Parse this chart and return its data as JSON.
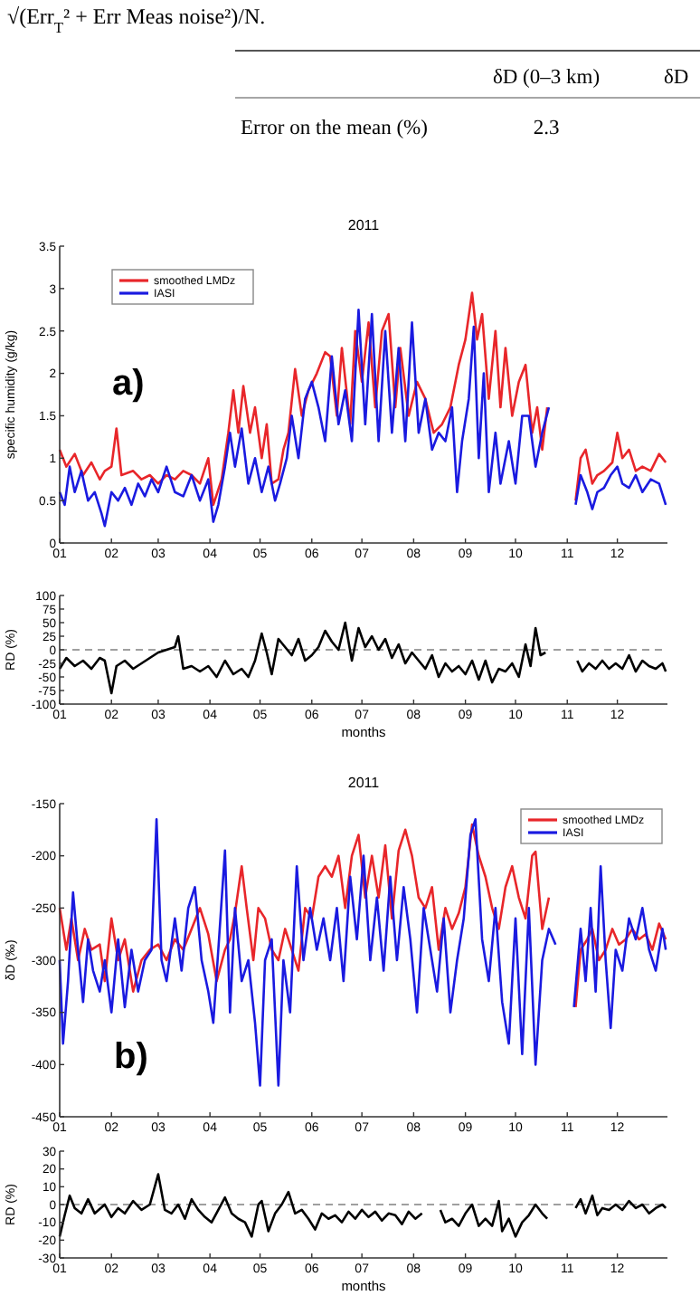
{
  "chart_data": [
    {
      "type": "other",
      "annotations": [
        "√(Err$_{T}$² + Err Meas noise²)/N.",
        "δD (0–3 km)",
        "δD",
        "Error on the mean (%)",
        "2.3"
      ]
    },
    {
      "type": "line",
      "title": "2011",
      "ylabel": "specific humidity (g/kg)",
      "xlim": [
        "2011-01-01",
        "2011-12-31"
      ],
      "xticks": [
        {
          "value": "2011-01-01",
          "label": "01"
        },
        {
          "value": "2011-02-01",
          "label": "02"
        },
        {
          "value": "2011-03-01",
          "label": "03"
        },
        {
          "value": "2011-04-01",
          "label": "04"
        },
        {
          "value": "2011-05-01",
          "label": "05"
        },
        {
          "value": "2011-06-01",
          "label": "06"
        },
        {
          "value": "2011-07-01",
          "label": "07"
        },
        {
          "value": "2011-08-01",
          "label": "08"
        },
        {
          "value": "2011-09-01",
          "label": "09"
        },
        {
          "value": "2011-10-01",
          "label": "10"
        },
        {
          "value": "2011-11-01",
          "label": "11"
        },
        {
          "value": "2011-12-01",
          "label": "12"
        }
      ],
      "ylim": [
        0,
        3.5
      ],
      "yticks": [
        0,
        0.5,
        1,
        1.5,
        2,
        2.5,
        3,
        3.5
      ],
      "legend": "top left",
      "annotations": [
        "a)"
      ],
      "series": [
        {
          "name": "smoothed LMDz",
          "color": "#e8262a",
          "x": [
            "2011-01-01",
            "2011-01-05",
            "2011-01-10",
            "2011-01-15",
            "2011-01-20",
            "2011-01-25",
            "2011-01-28",
            "2011-02-01",
            "2011-02-04",
            "2011-02-07",
            "2011-02-14",
            "2011-02-19",
            "2011-02-24",
            "2011-03-01",
            "2011-03-06",
            "2011-03-11",
            "2011-03-16",
            "2011-03-21",
            "2011-03-26",
            "2011-03-31",
            "2011-04-03",
            "2011-04-08",
            "2011-04-12",
            "2011-04-15",
            "2011-04-18",
            "2011-04-21",
            "2011-04-25",
            "2011-04-28",
            "2011-05-02",
            "2011-05-05",
            "2011-05-08",
            "2011-05-12",
            "2011-05-15",
            "2011-05-18",
            "2011-05-22",
            "2011-05-26",
            "2011-05-30",
            "2011-06-04",
            "2011-06-09",
            "2011-06-12",
            "2011-06-16",
            "2011-06-19",
            "2011-06-24",
            "2011-06-27",
            "2011-07-01",
            "2011-07-05",
            "2011-07-09",
            "2011-07-13",
            "2011-07-17",
            "2011-07-21",
            "2011-07-24",
            "2011-07-29",
            "2011-08-03",
            "2011-08-08",
            "2011-08-13",
            "2011-08-18",
            "2011-08-23",
            "2011-08-28",
            "2011-09-01",
            "2011-09-05",
            "2011-09-08",
            "2011-09-11",
            "2011-09-15",
            "2011-09-19",
            "2011-09-22",
            "2011-09-25",
            "2011-09-29",
            "2011-10-03",
            "2011-10-07",
            "2011-10-11",
            "2011-10-14",
            "2011-10-17",
            "2011-10-20",
            "2011-10-29",
            "2011-11-06",
            "2011-11-09",
            "2011-11-12",
            "2011-11-16",
            "2011-11-19",
            "2011-11-23",
            "2011-11-28",
            "2011-12-01",
            "2011-12-04",
            "2011-12-08",
            "2011-12-12",
            "2011-12-16",
            "2011-12-21",
            "2011-12-26",
            "2011-12-30"
          ],
          "values": [
            1.1,
            0.9,
            1.05,
            0.8,
            0.95,
            0.75,
            0.85,
            0.9,
            1.35,
            0.8,
            0.85,
            0.75,
            0.8,
            0.7,
            0.8,
            0.75,
            0.85,
            0.8,
            0.7,
            1.0,
            0.45,
            0.75,
            1.3,
            1.8,
            1.3,
            1.85,
            1.3,
            1.6,
            1.0,
            1.4,
            0.7,
            0.75,
            1.1,
            1.3,
            2.05,
            1.5,
            1.8,
            2.0,
            2.25,
            2.2,
            1.5,
            2.3,
            1.4,
            2.5,
            1.9,
            2.6,
            1.6,
            2.5,
            2.7,
            1.6,
            2.3,
            1.5,
            1.9,
            1.7,
            1.3,
            1.4,
            1.6,
            2.1,
            2.4,
            2.95,
            2.4,
            2.7,
            1.7,
            2.5,
            1.6,
            2.3,
            1.5,
            1.9,
            2.1,
            1.3,
            1.6,
            1.1,
            1.6,
            null,
            0.5,
            1.0,
            1.1,
            0.7,
            0.8,
            0.85,
            0.95,
            1.3,
            1.0,
            1.1,
            0.85,
            0.9,
            0.85,
            1.05,
            0.95
          ]
        },
        {
          "name": "IASI",
          "color": "#1a1ae0",
          "x": [
            "2011-01-01",
            "2011-01-04",
            "2011-01-07",
            "2011-01-10",
            "2011-01-14",
            "2011-01-18",
            "2011-01-22",
            "2011-01-26",
            "2011-01-28",
            "2011-02-01",
            "2011-02-05",
            "2011-02-09",
            "2011-02-13",
            "2011-02-17",
            "2011-02-21",
            "2011-02-25",
            "2011-03-01",
            "2011-03-06",
            "2011-03-11",
            "2011-03-16",
            "2011-03-21",
            "2011-03-26",
            "2011-03-31",
            "2011-04-03",
            "2011-04-06",
            "2011-04-10",
            "2011-04-13",
            "2011-04-16",
            "2011-04-20",
            "2011-04-24",
            "2011-04-28",
            "2011-05-02",
            "2011-05-06",
            "2011-05-10",
            "2011-05-13",
            "2011-05-17",
            "2011-05-20",
            "2011-05-24",
            "2011-05-28",
            "2011-06-01",
            "2011-06-05",
            "2011-06-09",
            "2011-06-13",
            "2011-06-17",
            "2011-06-21",
            "2011-06-25",
            "2011-06-29",
            "2011-07-03",
            "2011-07-07",
            "2011-07-11",
            "2011-07-15",
            "2011-07-19",
            "2011-07-23",
            "2011-07-27",
            "2011-07-31",
            "2011-08-04",
            "2011-08-08",
            "2011-08-12",
            "2011-08-16",
            "2011-08-20",
            "2011-08-24",
            "2011-08-27",
            "2011-08-30",
            "2011-09-03",
            "2011-09-06",
            "2011-09-09",
            "2011-09-12",
            "2011-09-15",
            "2011-09-19",
            "2011-09-22",
            "2011-09-27",
            "2011-10-01",
            "2011-10-05",
            "2011-10-09",
            "2011-10-13",
            "2011-10-17",
            "2011-10-21",
            "2011-10-29",
            "2011-11-06",
            "2011-11-09",
            "2011-11-13",
            "2011-11-16",
            "2011-11-19",
            "2011-11-23",
            "2011-11-27",
            "2011-12-01",
            "2011-12-04",
            "2011-12-08",
            "2011-12-12",
            "2011-12-16",
            "2011-12-21",
            "2011-12-26",
            "2011-12-30"
          ],
          "values": [
            0.6,
            0.45,
            0.9,
            0.6,
            0.85,
            0.5,
            0.6,
            0.35,
            0.2,
            0.6,
            0.5,
            0.65,
            0.45,
            0.7,
            0.55,
            0.75,
            0.6,
            0.9,
            0.6,
            0.55,
            0.8,
            0.5,
            0.75,
            0.25,
            0.45,
            0.9,
            1.3,
            0.9,
            1.35,
            0.7,
            1.0,
            0.6,
            0.9,
            0.5,
            0.7,
            1.0,
            1.5,
            1.0,
            1.7,
            1.9,
            1.6,
            1.2,
            2.2,
            1.4,
            1.8,
            1.2,
            2.75,
            1.4,
            2.7,
            1.2,
            2.5,
            1.3,
            2.3,
            1.2,
            2.6,
            1.3,
            1.7,
            1.1,
            1.3,
            1.2,
            1.6,
            0.6,
            1.2,
            1.7,
            2.55,
            1.0,
            2.0,
            0.6,
            1.3,
            0.7,
            1.2,
            0.7,
            1.5,
            1.5,
            0.9,
            1.3,
            1.6,
            null,
            0.45,
            0.8,
            0.6,
            0.4,
            0.6,
            0.65,
            0.8,
            0.9,
            0.7,
            0.65,
            0.8,
            0.6,
            0.75,
            0.7,
            0.45
          ]
        }
      ]
    },
    {
      "type": "line",
      "xlabel": "months",
      "ylabel": "RD (%)",
      "xlim": [
        "2011-01-01",
        "2011-12-31"
      ],
      "xticks": [
        {
          "value": "2011-01-01",
          "label": "01"
        },
        {
          "value": "2011-02-01",
          "label": "02"
        },
        {
          "value": "2011-03-01",
          "label": "03"
        },
        {
          "value": "2011-04-01",
          "label": "04"
        },
        {
          "value": "2011-05-01",
          "label": "05"
        },
        {
          "value": "2011-06-01",
          "label": "06"
        },
        {
          "value": "2011-07-01",
          "label": "07"
        },
        {
          "value": "2011-08-01",
          "label": "08"
        },
        {
          "value": "2011-09-01",
          "label": "09"
        },
        {
          "value": "2011-10-01",
          "label": "10"
        },
        {
          "value": "2011-11-01",
          "label": "11"
        },
        {
          "value": "2011-12-01",
          "label": "12"
        }
      ],
      "ylim": [
        -100,
        100
      ],
      "yticks": [
        -100,
        -75,
        -50,
        -25,
        0,
        25,
        50,
        75,
        100
      ],
      "ref_lines": [
        {
          "axis": "y",
          "value": 0,
          "color": "#808080",
          "line_style": "dashed"
        }
      ],
      "series": [
        {
          "color": "#000000",
          "x": [
            "2011-01-01",
            "2011-01-05",
            "2011-01-10",
            "2011-01-15",
            "2011-01-20",
            "2011-01-25",
            "2011-01-28",
            "2011-02-01",
            "2011-02-04",
            "2011-02-09",
            "2011-02-14",
            "2011-02-19",
            "2011-02-24",
            "2011-03-01",
            "2011-03-06",
            "2011-03-11",
            "2011-03-13",
            "2011-03-16",
            "2011-03-21",
            "2011-03-26",
            "2011-03-31",
            "2011-04-05",
            "2011-04-10",
            "2011-04-15",
            "2011-04-20",
            "2011-04-24",
            "2011-04-28",
            "2011-05-02",
            "2011-05-05",
            "2011-05-08",
            "2011-05-12",
            "2011-05-16",
            "2011-05-20",
            "2011-05-24",
            "2011-05-28",
            "2011-06-01",
            "2011-06-05",
            "2011-06-09",
            "2011-06-13",
            "2011-06-17",
            "2011-06-21",
            "2011-06-25",
            "2011-06-29",
            "2011-07-03",
            "2011-07-07",
            "2011-07-11",
            "2011-07-15",
            "2011-07-19",
            "2011-07-23",
            "2011-07-27",
            "2011-07-31",
            "2011-08-04",
            "2011-08-08",
            "2011-08-12",
            "2011-08-16",
            "2011-08-20",
            "2011-08-24",
            "2011-08-28",
            "2011-09-01",
            "2011-09-05",
            "2011-09-09",
            "2011-09-13",
            "2011-09-17",
            "2011-09-21",
            "2011-09-25",
            "2011-09-29",
            "2011-10-03",
            "2011-10-07",
            "2011-10-10",
            "2011-10-13",
            "2011-10-16",
            "2011-10-19",
            "2011-10-29",
            "2011-11-07",
            "2011-11-10",
            "2011-11-14",
            "2011-11-18",
            "2011-11-22",
            "2011-11-26",
            "2011-11-30",
            "2011-12-04",
            "2011-12-08",
            "2011-12-12",
            "2011-12-16",
            "2011-12-20",
            "2011-12-24",
            "2011-12-28",
            "2011-12-30"
          ],
          "values": [
            -35,
            -15,
            -30,
            -20,
            -35,
            -15,
            -20,
            -80,
            -30,
            -20,
            -35,
            -25,
            -15,
            -5,
            0,
            5,
            25,
            -35,
            -30,
            -40,
            -30,
            -50,
            -20,
            -45,
            -35,
            -50,
            -20,
            30,
            -5,
            -45,
            20,
            5,
            -10,
            20,
            -20,
            -10,
            5,
            35,
            15,
            0,
            50,
            -20,
            40,
            5,
            25,
            0,
            20,
            -15,
            10,
            -25,
            -5,
            -20,
            -35,
            -10,
            -50,
            -25,
            -40,
            -30,
            -45,
            -20,
            -55,
            -20,
            -60,
            -35,
            -40,
            -25,
            -50,
            10,
            -30,
            40,
            -10,
            -5,
            null,
            -20,
            -40,
            -25,
            -35,
            -20,
            -35,
            -25,
            -35,
            -10,
            -40,
            -20,
            -30,
            -35,
            -25,
            -40
          ]
        }
      ]
    },
    {
      "type": "line",
      "title": "2011",
      "ylabel": "δD (‰)",
      "xlim": [
        "2011-01-01",
        "2011-12-31"
      ],
      "xticks": [
        {
          "value": "2011-01-01",
          "label": "01"
        },
        {
          "value": "2011-02-01",
          "label": "02"
        },
        {
          "value": "2011-03-01",
          "label": "03"
        },
        {
          "value": "2011-04-01",
          "label": "04"
        },
        {
          "value": "2011-05-01",
          "label": "05"
        },
        {
          "value": "2011-06-01",
          "label": "06"
        },
        {
          "value": "2011-07-01",
          "label": "07"
        },
        {
          "value": "2011-08-01",
          "label": "08"
        },
        {
          "value": "2011-09-01",
          "label": "09"
        },
        {
          "value": "2011-10-01",
          "label": "10"
        },
        {
          "value": "2011-11-01",
          "label": "11"
        },
        {
          "value": "2011-12-01",
          "label": "12"
        }
      ],
      "ylim": [
        -450,
        -150
      ],
      "yticks": [
        -450,
        -400,
        -350,
        -300,
        -250,
        -200,
        -150
      ],
      "legend": "top right",
      "annotations": [
        "b)"
      ],
      "series": [
        {
          "name": "smoothed LMDz",
          "color": "#e8262a",
          "x": [
            "2011-01-01",
            "2011-01-05",
            "2011-01-08",
            "2011-01-12",
            "2011-01-16",
            "2011-01-20",
            "2011-01-25",
            "2011-01-28",
            "2011-02-01",
            "2011-02-05",
            "2011-02-09",
            "2011-02-14",
            "2011-02-19",
            "2011-02-24",
            "2011-03-01",
            "2011-03-06",
            "2011-03-11",
            "2011-03-16",
            "2011-03-21",
            "2011-03-26",
            "2011-03-31",
            "2011-04-05",
            "2011-04-10",
            "2011-04-13",
            "2011-04-16",
            "2011-04-20",
            "2011-04-23",
            "2011-04-27",
            "2011-04-30",
            "2011-05-04",
            "2011-05-08",
            "2011-05-12",
            "2011-05-16",
            "2011-05-20",
            "2011-05-24",
            "2011-05-28",
            "2011-06-01",
            "2011-06-05",
            "2011-06-09",
            "2011-06-13",
            "2011-06-17",
            "2011-06-21",
            "2011-06-25",
            "2011-06-29",
            "2011-07-03",
            "2011-07-07",
            "2011-07-11",
            "2011-07-15",
            "2011-07-19",
            "2011-07-23",
            "2011-07-27",
            "2011-07-31",
            "2011-08-04",
            "2011-08-08",
            "2011-08-12",
            "2011-08-16",
            "2011-08-20",
            "2011-08-24",
            "2011-08-28",
            "2011-09-01",
            "2011-09-05",
            "2011-09-09",
            "2011-09-13",
            "2011-09-17",
            "2011-09-21",
            "2011-09-25",
            "2011-09-29",
            "2011-10-03",
            "2011-10-07",
            "2011-10-11",
            "2011-10-13",
            "2011-10-17",
            "2011-10-21",
            "2011-10-29",
            "2011-11-06",
            "2011-11-09",
            "2011-11-13",
            "2011-11-16",
            "2011-11-20",
            "2011-11-24",
            "2011-11-28",
            "2011-12-02",
            "2011-12-06",
            "2011-12-10",
            "2011-12-14",
            "2011-12-18",
            "2011-12-22",
            "2011-12-26",
            "2011-12-30"
          ],
          "values": [
            -250,
            -290,
            -260,
            -300,
            -270,
            -290,
            -285,
            -320,
            -260,
            -300,
            -280,
            -330,
            -300,
            -290,
            -285,
            -300,
            -280,
            -290,
            -270,
            -250,
            -275,
            -320,
            -290,
            -280,
            -255,
            -210,
            -250,
            -300,
            -250,
            -260,
            -290,
            -300,
            -270,
            -290,
            -310,
            -250,
            -260,
            -220,
            -210,
            -220,
            -200,
            -250,
            -200,
            -180,
            -240,
            -200,
            -240,
            -190,
            -260,
            -195,
            -175,
            -200,
            -240,
            -250,
            -230,
            -290,
            -250,
            -270,
            -255,
            -230,
            -170,
            -200,
            -220,
            -250,
            -270,
            -230,
            -210,
            -240,
            -260,
            -200,
            -196,
            -270,
            -240,
            null,
            -345,
            -290,
            -280,
            -270,
            -300,
            -290,
            -270,
            -285,
            -280,
            -270,
            -280,
            -275,
            -290,
            -265,
            -280
          ]
        },
        {
          "name": "IASI",
          "color": "#1a1ae0",
          "x": [
            "2011-01-01",
            "2011-01-03",
            "2011-01-06",
            "2011-01-09",
            "2011-01-12",
            "2011-01-15",
            "2011-01-18",
            "2011-01-21",
            "2011-01-25",
            "2011-01-28",
            "2011-02-01",
            "2011-02-05",
            "2011-02-09",
            "2011-02-13",
            "2011-02-17",
            "2011-02-21",
            "2011-02-25",
            "2011-02-28",
            "2011-03-03",
            "2011-03-06",
            "2011-03-11",
            "2011-03-15",
            "2011-03-19",
            "2011-03-23",
            "2011-03-27",
            "2011-03-31",
            "2011-04-03",
            "2011-04-06",
            "2011-04-10",
            "2011-04-13",
            "2011-04-16",
            "2011-04-20",
            "2011-04-24",
            "2011-04-28",
            "2011-05-01",
            "2011-05-04",
            "2011-05-08",
            "2011-05-12",
            "2011-05-15",
            "2011-05-19",
            "2011-05-23",
            "2011-05-27",
            "2011-05-31",
            "2011-06-04",
            "2011-06-08",
            "2011-06-12",
            "2011-06-16",
            "2011-06-20",
            "2011-06-24",
            "2011-06-28",
            "2011-07-02",
            "2011-07-06",
            "2011-07-10",
            "2011-07-14",
            "2011-07-18",
            "2011-07-22",
            "2011-07-26",
            "2011-07-30",
            "2011-08-03",
            "2011-08-07",
            "2011-08-11",
            "2011-08-15",
            "2011-08-19",
            "2011-08-23",
            "2011-08-27",
            "2011-08-31",
            "2011-09-04",
            "2011-09-07",
            "2011-09-11",
            "2011-09-15",
            "2011-09-19",
            "2011-09-23",
            "2011-09-27",
            "2011-10-01",
            "2011-10-05",
            "2011-10-09",
            "2011-10-13",
            "2011-10-17",
            "2011-10-21",
            "2011-10-25",
            "2011-10-29",
            "2011-11-05",
            "2011-11-09",
            "2011-11-12",
            "2011-11-15",
            "2011-11-18",
            "2011-11-21",
            "2011-11-24",
            "2011-11-27",
            "2011-11-30",
            "2011-12-04",
            "2011-12-08",
            "2011-12-12",
            "2011-12-16",
            "2011-12-20",
            "2011-12-24",
            "2011-12-28",
            "2011-12-30"
          ],
          "values": [
            -300,
            -380,
            -320,
            -235,
            -290,
            -340,
            -280,
            -310,
            -330,
            -300,
            -350,
            -280,
            -345,
            -290,
            -330,
            -300,
            -290,
            -165,
            -300,
            -320,
            -260,
            -310,
            -250,
            -230,
            -300,
            -330,
            -360,
            -290,
            -195,
            -350,
            -250,
            -320,
            -300,
            -360,
            -420,
            -300,
            -280,
            -420,
            -300,
            -350,
            -210,
            -300,
            -250,
            -290,
            -260,
            -300,
            -250,
            -320,
            -220,
            -280,
            -200,
            -300,
            -240,
            -310,
            -220,
            -300,
            -230,
            -280,
            -350,
            -250,
            -290,
            -330,
            -260,
            -350,
            -300,
            -260,
            -180,
            -165,
            -280,
            -320,
            -250,
            -340,
            -380,
            -260,
            -390,
            -250,
            -400,
            -300,
            -270,
            -285,
            null,
            -345,
            -270,
            -320,
            -250,
            -330,
            -210,
            -300,
            -365,
            -290,
            -310,
            -260,
            -280,
            -250,
            -290,
            -310,
            -270,
            -290
          ]
        }
      ]
    },
    {
      "type": "line",
      "xlabel": "months",
      "ylabel": "RD (%)",
      "xlim": [
        "2011-01-01",
        "2011-12-31"
      ],
      "xticks": [
        {
          "value": "2011-01-01",
          "label": "01"
        },
        {
          "value": "2011-02-01",
          "label": "02"
        },
        {
          "value": "2011-03-01",
          "label": "03"
        },
        {
          "value": "2011-04-01",
          "label": "04"
        },
        {
          "value": "2011-05-01",
          "label": "05"
        },
        {
          "value": "2011-06-01",
          "label": "06"
        },
        {
          "value": "2011-07-01",
          "label": "07"
        },
        {
          "value": "2011-08-01",
          "label": "08"
        },
        {
          "value": "2011-09-01",
          "label": "09"
        },
        {
          "value": "2011-10-01",
          "label": "10"
        },
        {
          "value": "2011-11-01",
          "label": "11"
        },
        {
          "value": "2011-12-01",
          "label": "12"
        }
      ],
      "ylim": [
        -30,
        30
      ],
      "yticks": [
        -30,
        -20,
        -10,
        0,
        10,
        20,
        30
      ],
      "ref_lines": [
        {
          "axis": "y",
          "value": 0,
          "color": "#808080",
          "line_style": "dashed"
        }
      ],
      "series": [
        {
          "color": "#000000",
          "x": [
            "2011-01-01",
            "2011-01-04",
            "2011-01-07",
            "2011-01-10",
            "2011-01-14",
            "2011-01-18",
            "2011-01-22",
            "2011-01-28",
            "2011-02-01",
            "2011-02-05",
            "2011-02-09",
            "2011-02-14",
            "2011-02-19",
            "2011-02-24",
            "2011-03-01",
            "2011-03-05",
            "2011-03-09",
            "2011-03-13",
            "2011-03-17",
            "2011-03-21",
            "2011-03-25",
            "2011-03-29",
            "2011-04-02",
            "2011-04-06",
            "2011-04-10",
            "2011-04-14",
            "2011-04-18",
            "2011-04-22",
            "2011-04-26",
            "2011-04-30",
            "2011-05-02",
            "2011-05-06",
            "2011-05-10",
            "2011-05-14",
            "2011-05-18",
            "2011-05-22",
            "2011-05-26",
            "2011-05-30",
            "2011-06-03",
            "2011-06-07",
            "2011-06-11",
            "2011-06-15",
            "2011-06-19",
            "2011-06-23",
            "2011-06-27",
            "2011-07-01",
            "2011-07-05",
            "2011-07-09",
            "2011-07-13",
            "2011-07-17",
            "2011-07-21",
            "2011-07-25",
            "2011-07-29",
            "2011-08-02",
            "2011-08-06",
            "2011-08-12",
            "2011-08-17",
            "2011-08-20",
            "2011-08-24",
            "2011-08-28",
            "2011-09-01",
            "2011-09-05",
            "2011-09-09",
            "2011-09-13",
            "2011-09-17",
            "2011-09-21",
            "2011-09-23",
            "2011-09-27",
            "2011-10-01",
            "2011-10-05",
            "2011-10-09",
            "2011-10-13",
            "2011-10-17",
            "2011-10-20",
            "2011-10-29",
            "2011-11-06",
            "2011-11-09",
            "2011-11-12",
            "2011-11-16",
            "2011-11-19",
            "2011-11-22",
            "2011-11-26",
            "2011-11-30",
            "2011-12-04",
            "2011-12-08",
            "2011-12-12",
            "2011-12-16",
            "2011-12-20",
            "2011-12-24",
            "2011-12-28",
            "2011-12-30"
          ],
          "values": [
            -18,
            -6,
            5,
            -2,
            -5,
            3,
            -5,
            0,
            -7,
            -2,
            -5,
            2,
            -3,
            0,
            17,
            -3,
            -5,
            0,
            -8,
            3,
            -3,
            -7,
            -10,
            -3,
            4,
            -5,
            -8,
            -10,
            -18,
            0,
            2,
            -15,
            -5,
            0,
            7,
            -5,
            -3,
            -8,
            -14,
            -5,
            -8,
            -6,
            -10,
            -4,
            -8,
            -3,
            -7,
            -4,
            -9,
            -5,
            -6,
            -11,
            -4,
            -8,
            -5,
            null,
            -3,
            -10,
            -8,
            -12,
            -5,
            0,
            -12,
            -8,
            -12,
            2,
            -15,
            -8,
            -18,
            -10,
            -6,
            0,
            -5,
            -8,
            null,
            -2,
            3,
            -5,
            5,
            -6,
            -2,
            -3,
            0,
            -3,
            2,
            -2,
            0,
            -5,
            -2,
            0,
            -2
          ]
        }
      ]
    }
  ]
}
